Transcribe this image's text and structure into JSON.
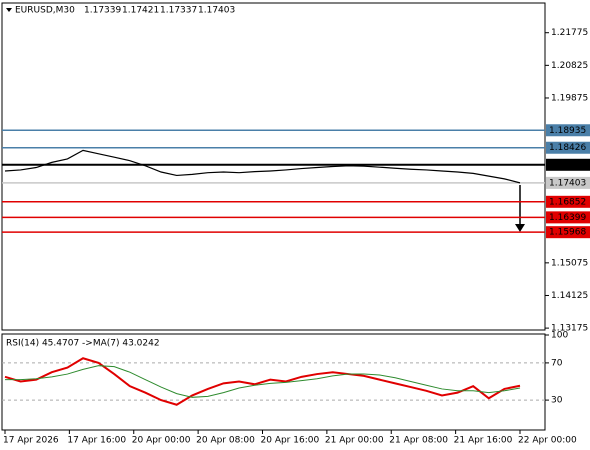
{
  "chart_data": {
    "type": "line",
    "symbol": "EURUSD,M30",
    "ohlc": [
      "1.17339",
      "1.17421",
      "1.17337",
      "1.17403"
    ],
    "ylim": [
      1.1312,
      1.2264
    ],
    "yticks": [
      1.21775,
      1.20825,
      1.19875,
      1.15075,
      1.14125,
      1.13175
    ],
    "levels": [
      {
        "value": 1.18935,
        "color": "#4a7fa8"
      },
      {
        "value": 1.18426,
        "color": "#4a7fa8"
      },
      {
        "value": 1.1793,
        "label": "1.17930",
        "color": "#000000"
      },
      {
        "value": 1.17403,
        "color": "#c8c8c8"
      },
      {
        "value": 1.16852,
        "color": "#e00000"
      },
      {
        "value": 1.16399,
        "color": "#e00000"
      },
      {
        "value": 1.15968,
        "color": "#e00000"
      }
    ],
    "price_color": "#000000",
    "price": [
      1.1775,
      1.1778,
      1.1785,
      1.18,
      1.181,
      1.1835,
      1.1825,
      1.1815,
      1.1805,
      1.179,
      1.1772,
      1.1762,
      1.1765,
      1.177,
      1.1772,
      1.177,
      1.1773,
      1.1775,
      1.1778,
      1.1782,
      1.1785,
      1.1788,
      1.179,
      1.1789,
      1.1786,
      1.1783,
      1.178,
      1.1778,
      1.1775,
      1.1772,
      1.1768,
      1.176,
      1.1752,
      1.17403
    ],
    "categories": [
      "17 Apr 2026",
      "17 Apr 16:00",
      "20 Apr 00:00",
      "20 Apr 08:00",
      "20 Apr 16:00",
      "21 Apr 00:00",
      "21 Apr 08:00",
      "21 Apr 16:00",
      "22 Apr 00:00"
    ],
    "rsi": {
      "title": "RSI(14) 45.4707  ->MA(7) 43.0242",
      "ylim": [
        0,
        100
      ],
      "yticks": [
        100,
        70,
        30
      ],
      "dashed": [
        70,
        30
      ],
      "series": [
        {
          "name": "RSI(14)",
          "color": "#e00000",
          "values": [
            55,
            50,
            52,
            60,
            65,
            75,
            70,
            58,
            45,
            38,
            30,
            25,
            35,
            42,
            48,
            50,
            47,
            52,
            50,
            55,
            58,
            60,
            58,
            56,
            52,
            48,
            44,
            40,
            35,
            38,
            45,
            32,
            42,
            45.4707
          ]
        },
        {
          "name": "MA(7)",
          "color": "#2e8b2e",
          "values": [
            52,
            52,
            53,
            55,
            58,
            63,
            67,
            66,
            60,
            52,
            44,
            37,
            33,
            34,
            38,
            43,
            46,
            48,
            49,
            51,
            53,
            56,
            58,
            58,
            57,
            54,
            50,
            46,
            42,
            40,
            40,
            38,
            40,
            43.0242
          ]
        }
      ]
    }
  }
}
